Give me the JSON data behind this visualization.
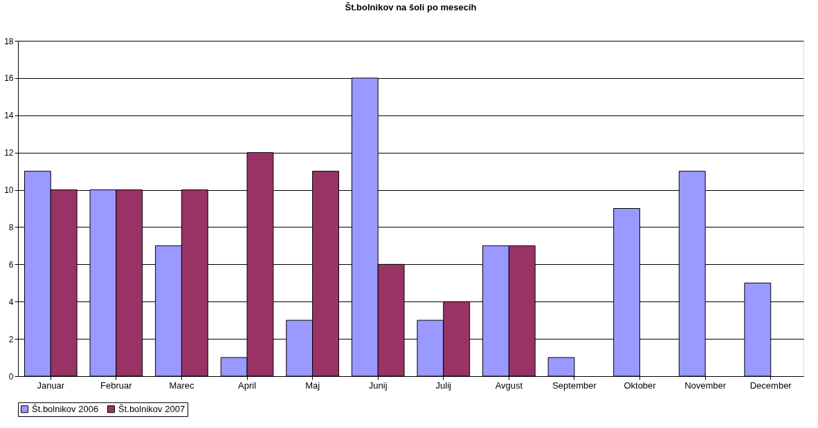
{
  "chart_data": {
    "type": "bar",
    "title": "Št.bolnikov na šoli po mesecih",
    "categories": [
      "Januar",
      "Februar",
      "Marec",
      "April",
      "Maj",
      "Junij",
      "Julij",
      "Avgust",
      "September",
      "Oktober",
      "November",
      "December"
    ],
    "series": [
      {
        "name": "Št.bolnikov 2006",
        "color": "#9999ff",
        "values": [
          11,
          10,
          7,
          1,
          3,
          16,
          3,
          7,
          1,
          9,
          11,
          5
        ]
      },
      {
        "name": "Št.bolnikov 2007",
        "color": "#993366",
        "values": [
          10,
          10,
          10,
          12,
          11,
          6,
          4,
          7,
          null,
          null,
          null,
          null
        ]
      }
    ],
    "ylim": [
      0,
      18
    ],
    "yticks": [
      0,
      2,
      4,
      6,
      8,
      10,
      12,
      14,
      16,
      18
    ],
    "grid": "y",
    "legend": "bottom"
  }
}
